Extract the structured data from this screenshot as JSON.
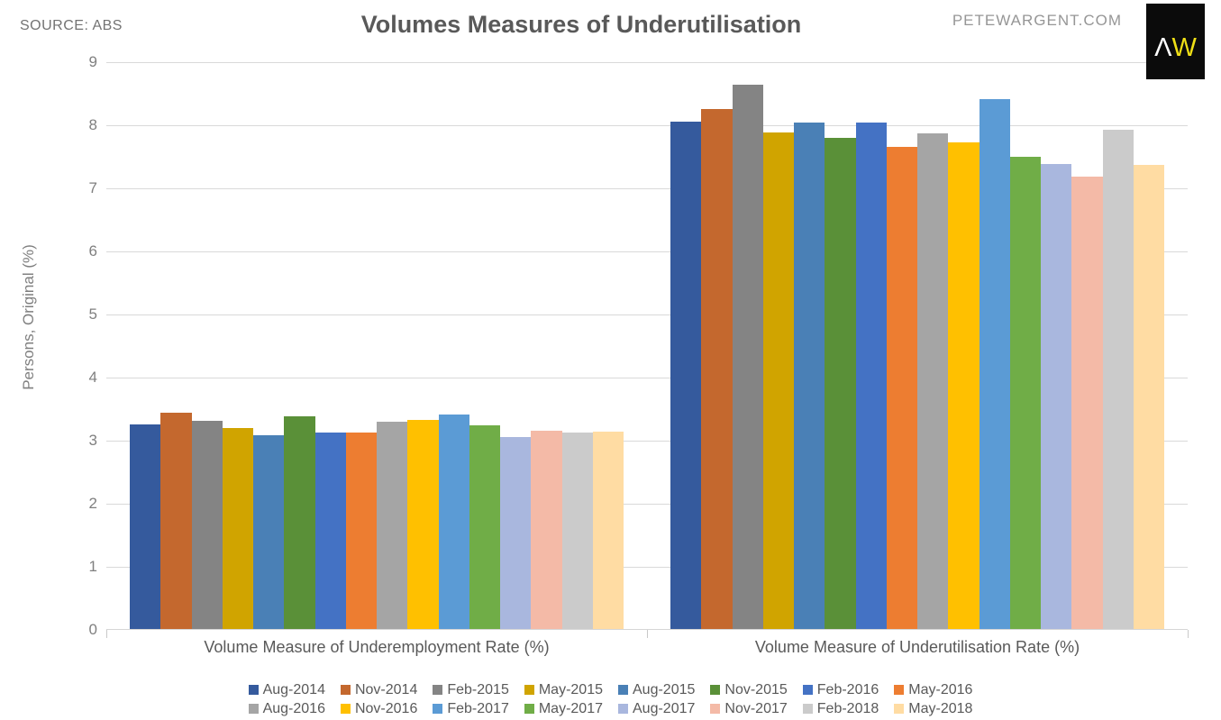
{
  "header": {
    "source_label": "SOURCE: ABS",
    "site_label": "PETEWARGENT.COM",
    "logo": {
      "caret": "Λ",
      "w": "W",
      "bg": "#0b0b0b",
      "caret_color": "#ffffff",
      "w_color": "#efdf16"
    }
  },
  "chart_data": {
    "type": "bar",
    "title": "Volumes Measures of Underutilisation",
    "ylabel": "Persons, Original (%)",
    "ylim": [
      0,
      9
    ],
    "yticks": [
      0,
      1,
      2,
      3,
      4,
      5,
      6,
      7,
      8,
      9
    ],
    "grid": true,
    "gridline_color": "#d9d9d9",
    "legend_position": "bottom",
    "categories": [
      "Volume Measure of Underemployment Rate (%)",
      "Volume Measure of Underutilisation Rate (%)"
    ],
    "series": [
      {
        "name": "Aug-2014",
        "color": "#355a9d",
        "values": [
          3.24,
          8.04
        ]
      },
      {
        "name": "Nov-2014",
        "color": "#c4682e",
        "values": [
          3.43,
          8.24
        ]
      },
      {
        "name": "Feb-2015",
        "color": "#848484",
        "values": [
          3.3,
          8.63
        ]
      },
      {
        "name": "May-2015",
        "color": "#d0a400",
        "values": [
          3.19,
          7.87
        ]
      },
      {
        "name": "Aug-2015",
        "color": "#4a80b6",
        "values": [
          3.07,
          8.03
        ]
      },
      {
        "name": "Nov-2015",
        "color": "#5a9038",
        "values": [
          3.37,
          7.79
        ]
      },
      {
        "name": "Feb-2016",
        "color": "#4472c4",
        "values": [
          3.11,
          8.03
        ]
      },
      {
        "name": "May-2016",
        "color": "#ed7d31",
        "values": [
          3.11,
          7.64
        ]
      },
      {
        "name": "Aug-2016",
        "color": "#a5a5a5",
        "values": [
          3.28,
          7.86
        ]
      },
      {
        "name": "Nov-2016",
        "color": "#ffc000",
        "values": [
          3.31,
          7.71
        ]
      },
      {
        "name": "Feb-2017",
        "color": "#5b9bd5",
        "values": [
          3.4,
          8.4
        ]
      },
      {
        "name": "May-2017",
        "color": "#70ad47",
        "values": [
          3.23,
          7.49
        ]
      },
      {
        "name": "Aug-2017",
        "color": "#a9b7de",
        "values": [
          3.05,
          7.37
        ]
      },
      {
        "name": "Nov-2017",
        "color": "#f4baa7",
        "values": [
          3.14,
          7.17
        ]
      },
      {
        "name": "Feb-2018",
        "color": "#cbcbcb",
        "values": [
          3.11,
          7.91
        ]
      },
      {
        "name": "May-2018",
        "color": "#ffdca3",
        "values": [
          3.13,
          7.36
        ]
      }
    ]
  }
}
